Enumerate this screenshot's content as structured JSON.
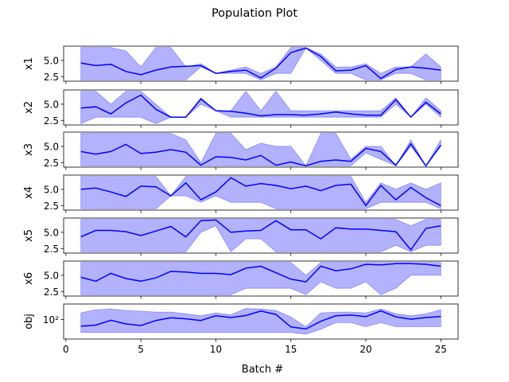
{
  "figure": {
    "title": "Population Plot",
    "xlabel": "Batch #"
  },
  "colors": {
    "line": "#0000ff",
    "band": "#0000ff",
    "axes": "#000000"
  },
  "chart_data": [
    {
      "type": "area",
      "ylabel": "x1",
      "yscale": "linear",
      "ylim": [
        1.8,
        7.2
      ],
      "yticks": [
        2.5,
        5.0
      ],
      "x": [
        1,
        2,
        3,
        4,
        5,
        6,
        7,
        8,
        9,
        10,
        11,
        12,
        13,
        14,
        15,
        16,
        17,
        18,
        19,
        20,
        21,
        22,
        23,
        24,
        25
      ],
      "mean": [
        4.6,
        4.2,
        4.4,
        3.3,
        2.8,
        3.5,
        4.0,
        4.1,
        4.2,
        3.0,
        3.3,
        3.5,
        2.3,
        3.8,
        6.2,
        6.9,
        5.6,
        3.4,
        3.5,
        4.2,
        2.2,
        3.6,
        4.0,
        3.8,
        3.5
      ],
      "min": [
        2.0,
        2.0,
        2.0,
        2.0,
        2.0,
        2.0,
        2.0,
        2.0,
        4.0,
        3.0,
        3.0,
        3.0,
        2.0,
        3.0,
        3.0,
        6.9,
        5.0,
        3.0,
        3.0,
        2.0,
        2.0,
        3.0,
        3.0,
        2.0,
        2.0
      ],
      "max": [
        7.0,
        7.0,
        7.0,
        6.5,
        4.0,
        7.0,
        7.0,
        4.0,
        4.5,
        3.0,
        3.5,
        4.0,
        3.0,
        4.0,
        7.0,
        7.0,
        6.0,
        4.0,
        4.0,
        4.5,
        3.0,
        4.0,
        4.0,
        6.0,
        4.0
      ]
    },
    {
      "type": "area",
      "ylabel": "x2",
      "yscale": "linear",
      "ylim": [
        1.8,
        7.2
      ],
      "yticks": [
        2.5,
        5.0
      ],
      "x": [
        1,
        2,
        3,
        4,
        5,
        6,
        7,
        8,
        9,
        10,
        11,
        12,
        13,
        14,
        15,
        16,
        17,
        18,
        19,
        20,
        21,
        22,
        23,
        24,
        25
      ],
      "mean": [
        4.4,
        4.6,
        3.5,
        5.2,
        6.4,
        4.2,
        3.0,
        3.0,
        5.8,
        4.0,
        3.9,
        3.6,
        3.2,
        3.4,
        3.4,
        3.3,
        3.5,
        3.8,
        3.5,
        3.3,
        3.3,
        5.7,
        3.0,
        5.3,
        3.5
      ],
      "min": [
        2.0,
        3.0,
        3.0,
        3.0,
        3.0,
        2.0,
        3.0,
        3.0,
        5.0,
        4.0,
        3.0,
        3.0,
        3.0,
        3.0,
        3.0,
        3.0,
        3.0,
        3.0,
        3.0,
        3.0,
        3.0,
        5.0,
        3.0,
        5.0,
        3.0
      ],
      "max": [
        7.0,
        7.0,
        5.0,
        7.0,
        7.0,
        5.0,
        3.0,
        3.0,
        6.0,
        4.0,
        4.0,
        7.0,
        4.0,
        7.0,
        4.0,
        4.0,
        4.0,
        4.0,
        4.0,
        4.0,
        4.0,
        6.0,
        3.0,
        6.0,
        4.0
      ]
    },
    {
      "type": "area",
      "ylabel": "x3",
      "yscale": "linear",
      "ylim": [
        1.8,
        7.2
      ],
      "yticks": [
        2.5,
        5.0
      ],
      "x": [
        1,
        2,
        3,
        4,
        5,
        6,
        7,
        8,
        9,
        10,
        11,
        12,
        13,
        14,
        15,
        16,
        17,
        18,
        19,
        20,
        21,
        22,
        23,
        24,
        25
      ],
      "mean": [
        4.2,
        3.8,
        4.2,
        5.3,
        3.9,
        4.1,
        4.5,
        4.1,
        2.1,
        3.4,
        3.3,
        2.9,
        3.6,
        2.1,
        2.6,
        2.0,
        2.7,
        2.9,
        2.7,
        4.7,
        4.2,
        2.1,
        5.4,
        2.0,
        5.2
      ],
      "min": [
        2.0,
        2.0,
        2.0,
        2.0,
        2.0,
        2.0,
        2.0,
        2.0,
        2.0,
        2.0,
        2.0,
        2.0,
        2.0,
        2.0,
        2.0,
        2.0,
        2.0,
        2.0,
        2.0,
        4.0,
        3.0,
        2.0,
        5.0,
        2.0,
        5.0
      ],
      "max": [
        7.0,
        7.0,
        7.0,
        7.0,
        7.0,
        7.0,
        7.0,
        6.0,
        2.5,
        7.0,
        7.0,
        4.5,
        5.5,
        5.0,
        5.0,
        2.0,
        7.0,
        7.0,
        3.0,
        5.0,
        5.0,
        2.0,
        6.0,
        2.0,
        6.0
      ]
    },
    {
      "type": "area",
      "ylabel": "x4",
      "yscale": "linear",
      "ylim": [
        1.8,
        7.2
      ],
      "yticks": [
        2.5,
        5.0
      ],
      "x": [
        1,
        2,
        3,
        4,
        5,
        6,
        7,
        8,
        9,
        10,
        11,
        12,
        13,
        14,
        15,
        16,
        17,
        18,
        19,
        20,
        21,
        22,
        23,
        24,
        25
      ],
      "mean": [
        5.0,
        5.2,
        4.6,
        3.9,
        5.5,
        5.4,
        4.0,
        6.0,
        3.4,
        4.6,
        6.8,
        5.5,
        5.9,
        5.6,
        5.1,
        5.5,
        4.8,
        5.6,
        5.8,
        2.5,
        5.6,
        3.4,
        5.3,
        3.7,
        2.5
      ],
      "min": [
        2.0,
        2.0,
        2.0,
        2.0,
        2.0,
        2.0,
        4.0,
        4.0,
        3.0,
        4.0,
        3.0,
        3.0,
        3.0,
        2.0,
        2.0,
        2.0,
        2.0,
        2.0,
        2.0,
        2.0,
        3.0,
        3.0,
        3.0,
        3.0,
        2.0
      ],
      "max": [
        7.0,
        7.0,
        7.0,
        7.0,
        7.0,
        7.0,
        4.0,
        7.0,
        7.0,
        7.0,
        7.0,
        7.0,
        7.0,
        7.0,
        7.0,
        7.0,
        7.0,
        7.0,
        7.0,
        3.0,
        6.0,
        5.0,
        6.0,
        5.0,
        6.0
      ]
    },
    {
      "type": "area",
      "ylabel": "x5",
      "yscale": "linear",
      "ylim": [
        1.8,
        7.2
      ],
      "yticks": [
        2.5,
        5.0
      ],
      "x": [
        1,
        2,
        3,
        4,
        5,
        6,
        7,
        8,
        9,
        10,
        11,
        12,
        13,
        14,
        15,
        16,
        17,
        18,
        19,
        20,
        21,
        22,
        23,
        24,
        25
      ],
      "mean": [
        4.3,
        5.3,
        5.3,
        5.1,
        4.5,
        5.2,
        5.9,
        4.3,
        6.8,
        6.9,
        5.0,
        5.2,
        5.3,
        6.8,
        5.4,
        5.4,
        4.0,
        5.7,
        5.5,
        5.5,
        5.3,
        5.1,
        2.3,
        5.6,
        6.0
      ],
      "min": [
        2.0,
        2.0,
        2.0,
        2.0,
        2.0,
        2.0,
        2.0,
        2.0,
        5.0,
        6.0,
        2.0,
        4.0,
        4.0,
        2.0,
        2.0,
        2.0,
        2.0,
        2.0,
        2.0,
        2.0,
        2.0,
        3.0,
        2.0,
        3.0,
        3.0
      ],
      "max": [
        7.0,
        7.0,
        7.0,
        7.0,
        7.0,
        7.0,
        7.0,
        7.0,
        7.0,
        7.0,
        7.0,
        7.0,
        7.0,
        7.0,
        7.0,
        7.0,
        7.0,
        7.0,
        7.0,
        7.0,
        7.0,
        7.0,
        6.0,
        7.0,
        7.0
      ]
    },
    {
      "type": "area",
      "ylabel": "x6",
      "yscale": "linear",
      "ylim": [
        1.8,
        7.2
      ],
      "yticks": [
        2.5,
        5.0
      ],
      "x": [
        1,
        2,
        3,
        4,
        5,
        6,
        7,
        8,
        9,
        10,
        11,
        12,
        13,
        14,
        15,
        16,
        17,
        18,
        19,
        20,
        21,
        22,
        23,
        24,
        25
      ],
      "mean": [
        4.7,
        4.1,
        5.3,
        4.5,
        4.1,
        4.6,
        5.6,
        5.5,
        5.3,
        5.3,
        5.1,
        6.1,
        6.4,
        5.4,
        4.4,
        4.0,
        6.4,
        5.7,
        6.0,
        6.7,
        6.6,
        6.8,
        6.8,
        6.7,
        6.4
      ],
      "min": [
        2.0,
        2.0,
        2.0,
        2.0,
        2.0,
        2.0,
        2.0,
        2.0,
        2.0,
        2.0,
        2.0,
        3.0,
        3.0,
        3.0,
        3.0,
        2.0,
        4.0,
        3.0,
        3.0,
        4.0,
        2.0,
        3.0,
        5.0,
        5.0,
        5.0
      ],
      "max": [
        7.0,
        7.0,
        7.0,
        7.0,
        7.0,
        7.0,
        7.0,
        7.0,
        7.0,
        7.0,
        7.0,
        7.0,
        7.0,
        7.0,
        7.0,
        5.0,
        7.0,
        7.0,
        7.0,
        7.0,
        7.0,
        7.0,
        7.0,
        7.0,
        7.0
      ]
    },
    {
      "type": "area",
      "ylabel": "obj",
      "yscale": "log",
      "ylim": [
        25,
        300
      ],
      "yticks": [
        100
      ],
      "yticklabels": [
        "10²"
      ],
      "x": [
        1,
        2,
        3,
        4,
        5,
        6,
        7,
        8,
        9,
        10,
        11,
        12,
        13,
        14,
        15,
        16,
        17,
        18,
        19,
        20,
        21,
        22,
        23,
        24,
        25
      ],
      "mean": [
        62,
        67,
        95,
        73,
        65,
        93,
        113,
        105,
        93,
        130,
        115,
        132,
        183,
        143,
        59,
        51,
        88,
        130,
        137,
        122,
        185,
        120,
        102,
        115,
        123
      ],
      "min": [
        40,
        40,
        40,
        40,
        40,
        40,
        40,
        40,
        40,
        40,
        40,
        40,
        40,
        40,
        40,
        35,
        50,
        80,
        80,
        60,
        80,
        60,
        60,
        60,
        60
      ],
      "max": [
        160,
        200,
        210,
        190,
        180,
        170,
        170,
        150,
        130,
        160,
        140,
        220,
        210,
        190,
        120,
        60,
        160,
        170,
        170,
        160,
        210,
        150,
        130,
        150,
        200
      ]
    }
  ]
}
